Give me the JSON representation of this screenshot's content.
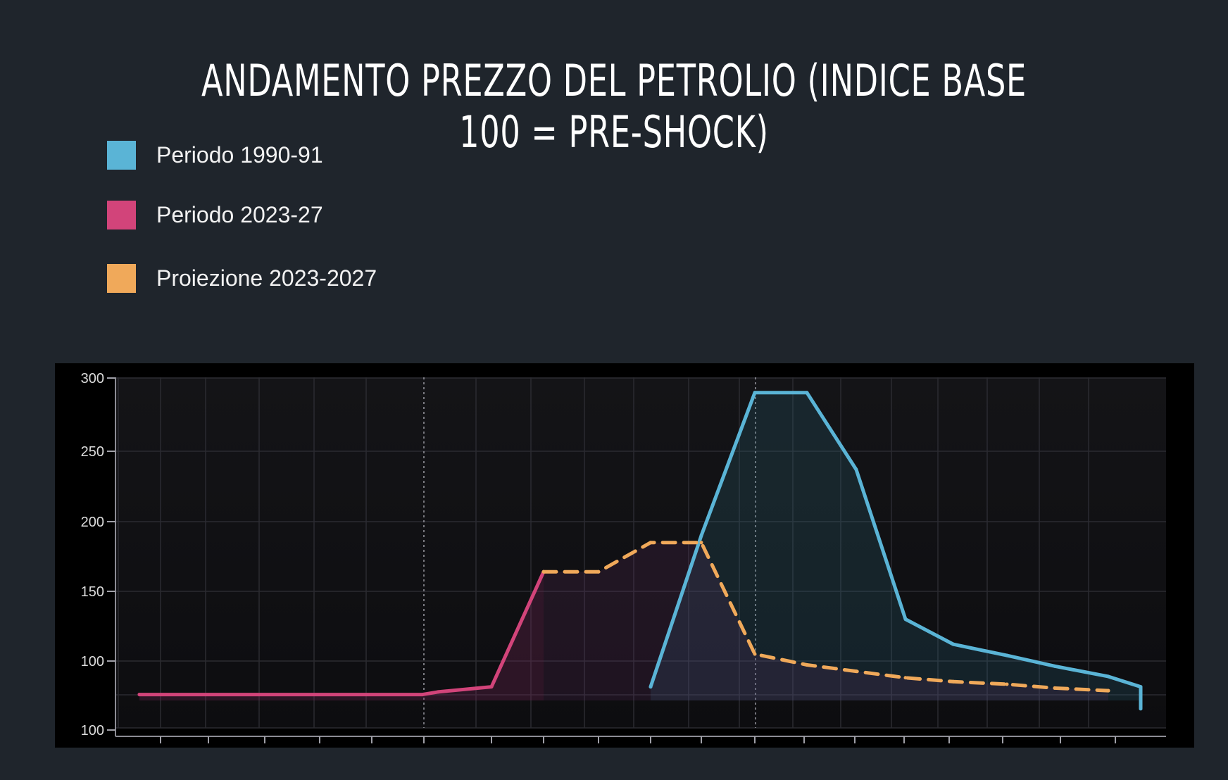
{
  "chart_data": {
    "type": "line",
    "title": "ANDAMENTO PREZZO DEL PETROLIO (INDICE BASE 100 = PRE-SHOCK)",
    "xlabel": "",
    "ylabel": "",
    "y_tick_labels": [
      "300",
      "250",
      "200",
      "150",
      "100",
      "100"
    ],
    "legend_position": "top-left",
    "grid": true,
    "series": [
      {
        "name": "Periodo 1990-91",
        "color": "#5ab4d6",
        "style": "solid",
        "x": [
          10,
          11,
          12,
          13,
          14,
          15,
          16,
          17,
          18,
          19,
          20,
          21,
          22
        ],
        "values": [
          80,
          190,
          290,
          290,
          237,
          130,
          112,
          104,
          96,
          88,
          80,
          71,
          63
        ]
      },
      {
        "name": "Periodo 2023-27",
        "color": "#d2447a",
        "style": "solid",
        "x": [
          0,
          5,
          6,
          7,
          8
        ],
        "values": [
          74,
          74,
          76,
          80,
          164
        ]
      },
      {
        "name": "Proiezione 2023-2027",
        "color": "#f0a95a",
        "style": "dashed",
        "x": [
          8,
          9,
          10,
          11,
          12,
          13,
          14,
          15,
          16,
          17,
          18,
          19
        ],
        "values": [
          164,
          164,
          185,
          185,
          105,
          97,
          92,
          87,
          84,
          82,
          79,
          77
        ]
      }
    ]
  }
}
